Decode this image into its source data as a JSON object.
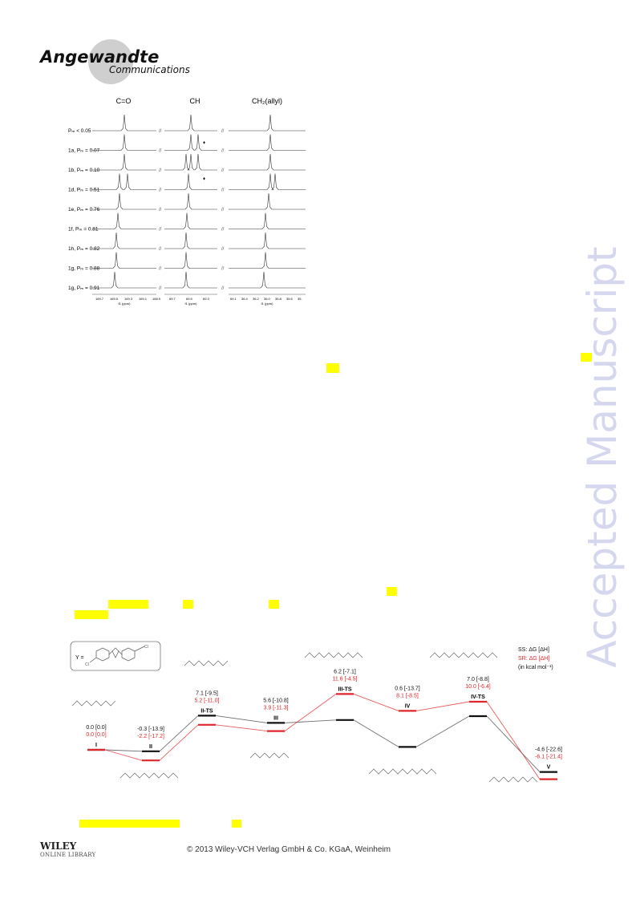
{
  "header": {
    "title": "Angewandte",
    "subtitle": "Communications"
  },
  "watermark": "Accepted Manuscript",
  "nmr_figure": {
    "column_headers": [
      "C=O",
      "CH",
      "CH₂(allyl)"
    ],
    "break_mark": "//",
    "rows": [
      "Pₘ < 0.05",
      "1a, Pₘ = 0.07",
      "1b, Pₘ = 0.10",
      "1d, Pₘ = 0.51",
      "1e, Pₘ = 0.76",
      "1f, Pₘ = 0.81",
      "1h, Pₘ = 0.82",
      "1g, Pₘ = 0.88",
      "1g, Pₘ = 0.91"
    ],
    "axis_ticks_co": [
      "169.7",
      "169.5",
      "169.3",
      "169.1",
      "168.9"
    ],
    "axis_ticks_ch": [
      "69.7",
      "69.5",
      "69.3"
    ],
    "axis_ticks_ch2": [
      "69.1",
      "36.4",
      "36.2",
      "36.0",
      "35.8",
      "35.6",
      "35."
    ],
    "axis_unit": "f1 (ppm)"
  },
  "energy_diagram": {
    "legend": {
      "ss": "SS: ΔG [ΔH]",
      "sr": "SR: ΔG [ΔH]",
      "units": "(in kcal mol⁻¹)"
    },
    "y_label": "Y =",
    "states": [
      {
        "name": "I",
        "ss": "0.0 [0.0]",
        "sr": "0.0 [0.0]"
      },
      {
        "name": "II",
        "ss": "-0.3 [-13.9]",
        "sr": "-2.2 [-17.2]"
      },
      {
        "name": "II-TS",
        "ss": "7.1 [-9.5]",
        "sr": "5.2 [-11.0]"
      },
      {
        "name": "III",
        "ss": "5.6 [-10.8]",
        "sr": "3.9 [-11.3]"
      },
      {
        "name": "III-TS",
        "ss": "6.2 [-7.1]",
        "sr": "11.6 [-4.5]"
      },
      {
        "name": "IV",
        "ss": "0.6 [-13.7]",
        "sr": "8.1 [-8.5]"
      },
      {
        "name": "IV-TS",
        "ss": "7.0 [-8.8]",
        "sr": "10.0 [-6.4]"
      },
      {
        "name": "V",
        "ss": "-4.6 [-22.6]",
        "sr": "-6.1 [-21.4]"
      }
    ]
  },
  "footer": {
    "publisher": "WILEY",
    "library": "ONLINE LIBRARY",
    "copyright": "© 2013 Wiley-VCH Verlag GmbH & Co. KGaA, Weinheim"
  },
  "colors": {
    "ss_line": "#111111",
    "sr_line": "#e0262a",
    "highlight": "#ffff00",
    "watermark": "#d5d7ee"
  }
}
